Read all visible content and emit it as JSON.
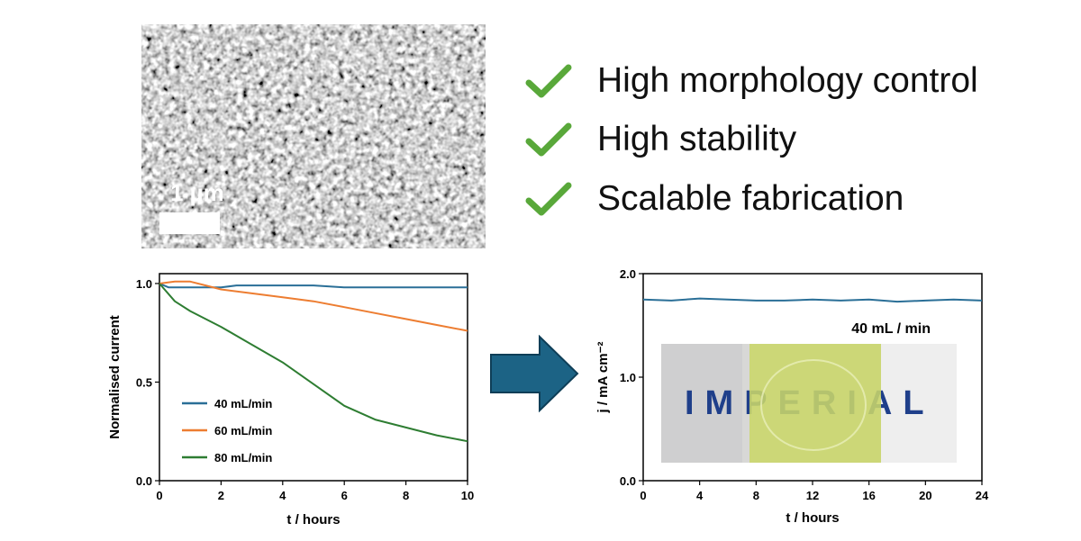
{
  "sem_image": {
    "scale_label": "1 µm"
  },
  "checklist": [
    {
      "icon": "check-icon",
      "text": "High morphology control"
    },
    {
      "icon": "check-icon",
      "text": "High stability"
    },
    {
      "icon": "check-icon",
      "text": "Scalable fabrication"
    }
  ],
  "colors": {
    "check": "#59a83a",
    "arrow": "#1c6385",
    "arrow_border": "#0e3e57"
  },
  "arrow_icon": "right-arrow-icon",
  "photo": {
    "label": "IMPERIAL",
    "caption": "40 mL / min"
  },
  "chart_data": [
    {
      "type": "line",
      "xlabel": "t / hours",
      "ylabel": "Normalised current",
      "xlim": [
        0,
        10
      ],
      "ylim": [
        0,
        1.05
      ],
      "xticks": [
        "0",
        "2",
        "4",
        "6",
        "8",
        "10"
      ],
      "yticks": [
        "0.0",
        "0.5",
        "1.0"
      ],
      "legend_position": "bottom-left",
      "series": [
        {
          "name": "40 mL/min",
          "color": "#2a6f97",
          "x": [
            0,
            0.3,
            0.6,
            1,
            1.5,
            2,
            2.5,
            3,
            4,
            5,
            6,
            7,
            8,
            9,
            10
          ],
          "y": [
            1.0,
            0.98,
            0.98,
            0.98,
            0.98,
            0.98,
            0.99,
            0.99,
            0.99,
            0.99,
            0.98,
            0.98,
            0.98,
            0.98,
            0.98
          ]
        },
        {
          "name": "60 mL/min",
          "color": "#ed7d31",
          "x": [
            0,
            0.5,
            1,
            1.5,
            2,
            3,
            4,
            5,
            6,
            7,
            8,
            9,
            10
          ],
          "y": [
            1.0,
            1.01,
            1.01,
            0.99,
            0.97,
            0.95,
            0.93,
            0.91,
            0.88,
            0.85,
            0.82,
            0.79,
            0.76
          ]
        },
        {
          "name": "80 mL/min",
          "color": "#2e7d32",
          "x": [
            0,
            0.5,
            1,
            2,
            3,
            4,
            5,
            6,
            7,
            8,
            9,
            10
          ],
          "y": [
            1.0,
            0.91,
            0.86,
            0.78,
            0.69,
            0.6,
            0.49,
            0.38,
            0.31,
            0.27,
            0.23,
            0.2
          ]
        }
      ]
    },
    {
      "type": "line",
      "xlabel": "t / hours",
      "ylabel": "j / mA cm⁻²",
      "xlim": [
        0,
        24
      ],
      "ylim": [
        0,
        2.0
      ],
      "xticks": [
        "0",
        "4",
        "8",
        "12",
        "16",
        "20",
        "24"
      ],
      "yticks": [
        "0.0",
        "1.0",
        "2.0"
      ],
      "series": [
        {
          "color": "#2a6f97",
          "x": [
            0,
            2,
            4,
            6,
            8,
            10,
            12,
            14,
            16,
            18,
            20,
            22,
            24
          ],
          "y": [
            1.75,
            1.74,
            1.76,
            1.75,
            1.74,
            1.74,
            1.75,
            1.74,
            1.75,
            1.73,
            1.74,
            1.75,
            1.74
          ]
        }
      ]
    }
  ]
}
